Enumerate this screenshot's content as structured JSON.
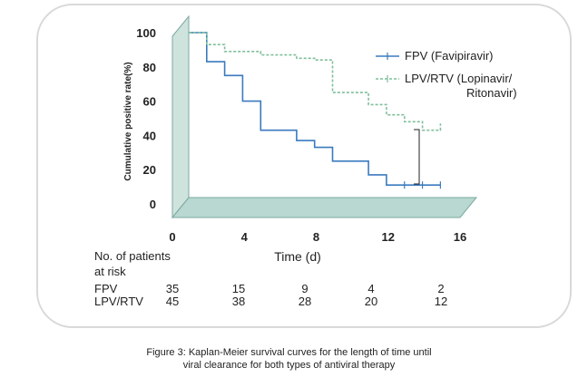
{
  "chart_data": {
    "type": "line",
    "subtype": "kaplan-meier step",
    "xlabel": "Time (d)",
    "ylabel": "Cumulative positive rate(%)",
    "xticks": [
      "0",
      "4",
      "8",
      "12",
      "16"
    ],
    "yticks": [
      "0",
      "20",
      "40",
      "60",
      "80",
      "100"
    ],
    "xlim": [
      0,
      16
    ],
    "ylim": [
      0,
      100
    ],
    "legend_position": "top-right",
    "series": [
      {
        "name": "FPV (Favipiravir)",
        "color": "#3a7abf",
        "style": "solid",
        "x": [
          0,
          1,
          1,
          2,
          2,
          3,
          3,
          4,
          4,
          6,
          6,
          7,
          7,
          8,
          8,
          10,
          10,
          11,
          11,
          14
        ],
        "y": [
          100,
          100,
          83,
          83,
          75,
          75,
          60,
          60,
          43,
          43,
          37,
          37,
          33,
          33,
          25,
          25,
          17,
          17,
          11,
          11
        ]
      },
      {
        "name": "LPV/RTV (Lopinavir/\nRitonavir)",
        "color": "#7fbf9a",
        "style": "dashed",
        "x": [
          0,
          1,
          1,
          2,
          2,
          4,
          4,
          6,
          6,
          7,
          7,
          8,
          8,
          10,
          10,
          11,
          11,
          12,
          12,
          13,
          13,
          14,
          14
        ],
        "y": [
          100,
          100,
          93,
          93,
          89,
          89,
          87,
          87,
          85,
          85,
          84,
          84,
          65,
          65,
          58,
          58,
          52,
          52,
          48,
          48,
          43,
          43,
          47
        ]
      }
    ],
    "risk_table": {
      "heading": "No. of patients at risk",
      "rows": [
        {
          "label": "FPV",
          "values": [
            "35",
            "15",
            "9",
            "4",
            "2"
          ]
        },
        {
          "label": "LPV/RTV",
          "values": [
            "45",
            "38",
            "28",
            "20",
            "12"
          ]
        }
      ]
    }
  },
  "legend": {
    "fpv_label": "FPV (Favipiravir)",
    "lpv_label_line1": "LPV/RTV (Lopinavir/",
    "lpv_label_line2": "Ritonavir)"
  },
  "risk_heading_line1": "No. of patients",
  "risk_heading_line2": "at risk",
  "caption": {
    "line1": "Figure 3: Kaplan-Meier survival curves for the length of time until",
    "line2": "viral clearance for both types of antiviral therapy"
  }
}
